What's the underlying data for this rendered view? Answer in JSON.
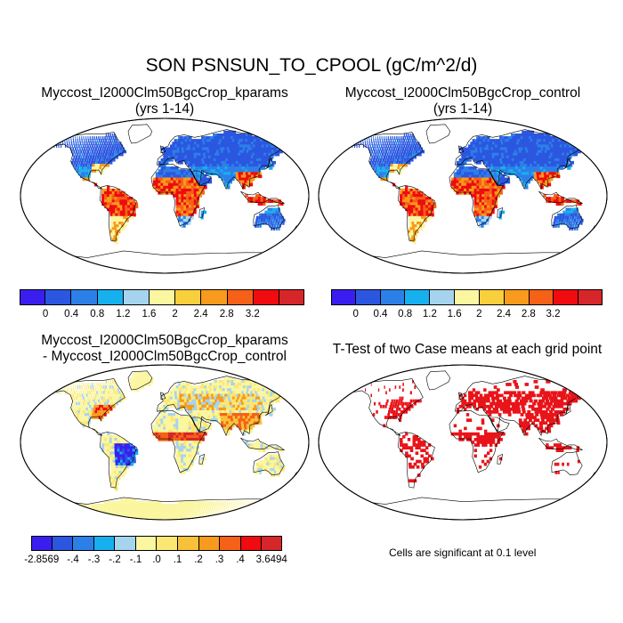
{
  "title": "SON PSNSUN_TO_CPOOL (gC/m^2/d)",
  "panels": {
    "top_left": {
      "title_line1": "Myccost_I2000Clm50BgcCrop_kparams",
      "title_line2": "(yrs 1-14)"
    },
    "top_right": {
      "title_line1": "Myccost_I2000Clm50BgcCrop_control",
      "title_line2": "(yrs 1-14)"
    },
    "bottom_left": {
      "title_line1": "Myccost_I2000Clm50BgcCrop_kparams",
      "title_line2": "- Myccost_I2000Clm50BgcCrop_control"
    },
    "bottom_right": {
      "title_line1": "T-Test of two Case means at each grid point"
    }
  },
  "colorbar_main": {
    "colors": [
      "#3a1ef0",
      "#2b57e0",
      "#2d7fe8",
      "#17b0ef",
      "#a6d4ee",
      "#fbf6a0",
      "#f8cf3c",
      "#f89a1d",
      "#f56117",
      "#ef0b10",
      "#d6262a"
    ],
    "labels": [
      "0",
      "0.4",
      "0.8",
      "1.2",
      "1.6",
      "2",
      "2.4",
      "2.8",
      "3.2"
    ]
  },
  "colorbar_diff": {
    "colors": [
      "#3a1ef0",
      "#2b57e0",
      "#2d7fe8",
      "#17b0ef",
      "#a6d4ee",
      "#fbf6a0",
      "#fbe773",
      "#f8c13a",
      "#f89a1d",
      "#f56117",
      "#ef0b10",
      "#d6262a"
    ],
    "labels": [
      "-2.8569",
      "-.4",
      "-.3",
      "-.2",
      "-.1",
      ".0",
      ".1",
      ".2",
      ".3",
      ".4",
      "3.6494"
    ]
  },
  "significance_note": "Cells are significant at 0.1 level",
  "map_colors": {
    "ocean": "#ffffff",
    "low": "#2b57e0",
    "low2": "#2d7fe8",
    "mid": "#a6d4ee",
    "high": "#f89a1d",
    "hot": "#ef0b10",
    "pale": "#fbf6a0",
    "sig": "#e8141a"
  }
}
